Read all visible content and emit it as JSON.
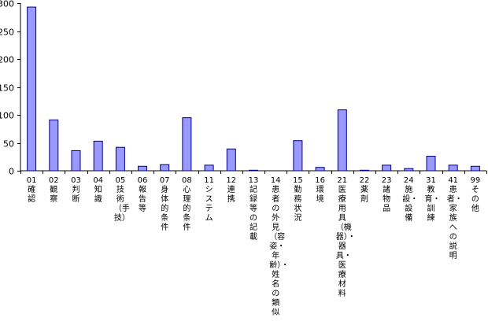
{
  "chart_data": {
    "type": "bar",
    "title": "",
    "xlabel": "",
    "ylabel": "",
    "ylim": [
      0,
      300
    ],
    "yticks": [
      0,
      50,
      100,
      150,
      200,
      250,
      300
    ],
    "grid": false,
    "legend": "none",
    "bar_color": "#9999ff",
    "bar_edge_color": "#000080",
    "categories": [
      "01確認",
      "02観察",
      "03判断",
      "04知識",
      "05技術（手技）",
      "06報告等",
      "07身体的条件",
      "08心理的条件",
      "11システム",
      "12連携",
      "13記録等の記載",
      "14患者の外見（容姿・年齢）・姓名の類似",
      "15勤務状況",
      "16環境",
      "21医療用具（機器）・器具・医療材料",
      "22薬剤",
      "23諸物品",
      "24施設・設備",
      "31教育・訓練",
      "41患者・家族への説明",
      "99その他"
    ],
    "values": [
      293,
      91,
      36,
      53,
      42,
      8,
      11,
      95,
      10,
      39,
      1,
      0,
      54,
      6,
      109,
      1,
      10,
      4,
      26,
      10,
      8
    ]
  }
}
